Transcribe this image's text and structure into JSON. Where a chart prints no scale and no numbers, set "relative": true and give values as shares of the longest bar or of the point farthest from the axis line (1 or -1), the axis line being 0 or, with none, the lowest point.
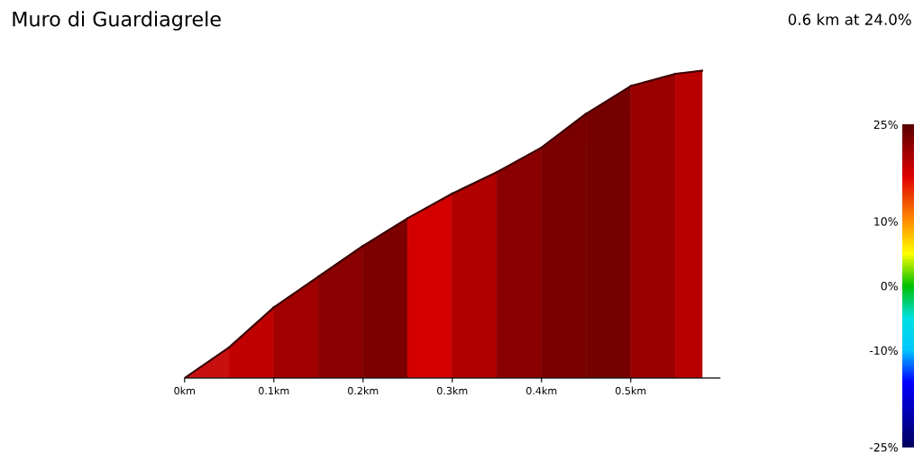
{
  "chart_data": {
    "type": "area",
    "title": "Muro di Guardiagrele",
    "subtitle": "0.6 km at 24.0%",
    "relative": true,
    "series": [
      {
        "x": [
          0,
          0.05
        ],
        "values": [
          0,
          0.1
        ],
        "color": "#c81010"
      },
      {
        "x": [
          0.05,
          0.1
        ],
        "values": [
          0.1,
          0.23
        ],
        "color": "#c00000"
      },
      {
        "x": [
          0.1,
          0.15
        ],
        "values": [
          0.23,
          0.33
        ],
        "color": "#a00000"
      },
      {
        "x": [
          0.15,
          0.2
        ],
        "values": [
          0.33,
          0.43
        ],
        "color": "#8b0000"
      },
      {
        "x": [
          0.2,
          0.25
        ],
        "values": [
          0.43,
          0.52
        ],
        "color": "#7d0000"
      },
      {
        "x": [
          0.25,
          0.3
        ],
        "values": [
          0.52,
          0.6
        ],
        "color": "#d40000"
      },
      {
        "x": [
          0.3,
          0.35
        ],
        "values": [
          0.6,
          0.67
        ],
        "color": "#b00000"
      },
      {
        "x": [
          0.35,
          0.4
        ],
        "values": [
          0.67,
          0.75
        ],
        "color": "#8a0000"
      },
      {
        "x": [
          0.4,
          0.45
        ],
        "values": [
          0.75,
          0.86
        ],
        "color": "#7a0000"
      },
      {
        "x": [
          0.45,
          0.5
        ],
        "values": [
          0.86,
          0.95
        ],
        "color": "#760000"
      },
      {
        "x": [
          0.5,
          0.55
        ],
        "values": [
          0.95,
          0.99
        ],
        "color": "#9a0000"
      },
      {
        "x": [
          0.55,
          0.58
        ],
        "values": [
          0.99,
          1.0
        ],
        "color": "#b80000"
      }
    ],
    "xlim": [
      0,
      0.6
    ],
    "xticks": [
      {
        "value": 0,
        "label": "0km"
      },
      {
        "value": 0.1,
        "label": "0.1km"
      },
      {
        "value": 0.2,
        "label": "0.2km"
      },
      {
        "value": 0.3,
        "label": "0.3km"
      },
      {
        "value": 0.4,
        "label": "0.4km"
      },
      {
        "value": 0.5,
        "label": "0.5km"
      }
    ],
    "clim": [
      -25,
      25
    ],
    "cticks": [
      {
        "value": 25,
        "label": "25%"
      },
      {
        "value": 10,
        "label": "10%"
      },
      {
        "value": 0,
        "label": "0%"
      },
      {
        "value": -10,
        "label": "-10%"
      },
      {
        "value": -25,
        "label": "-25%"
      }
    ],
    "grid": false
  }
}
